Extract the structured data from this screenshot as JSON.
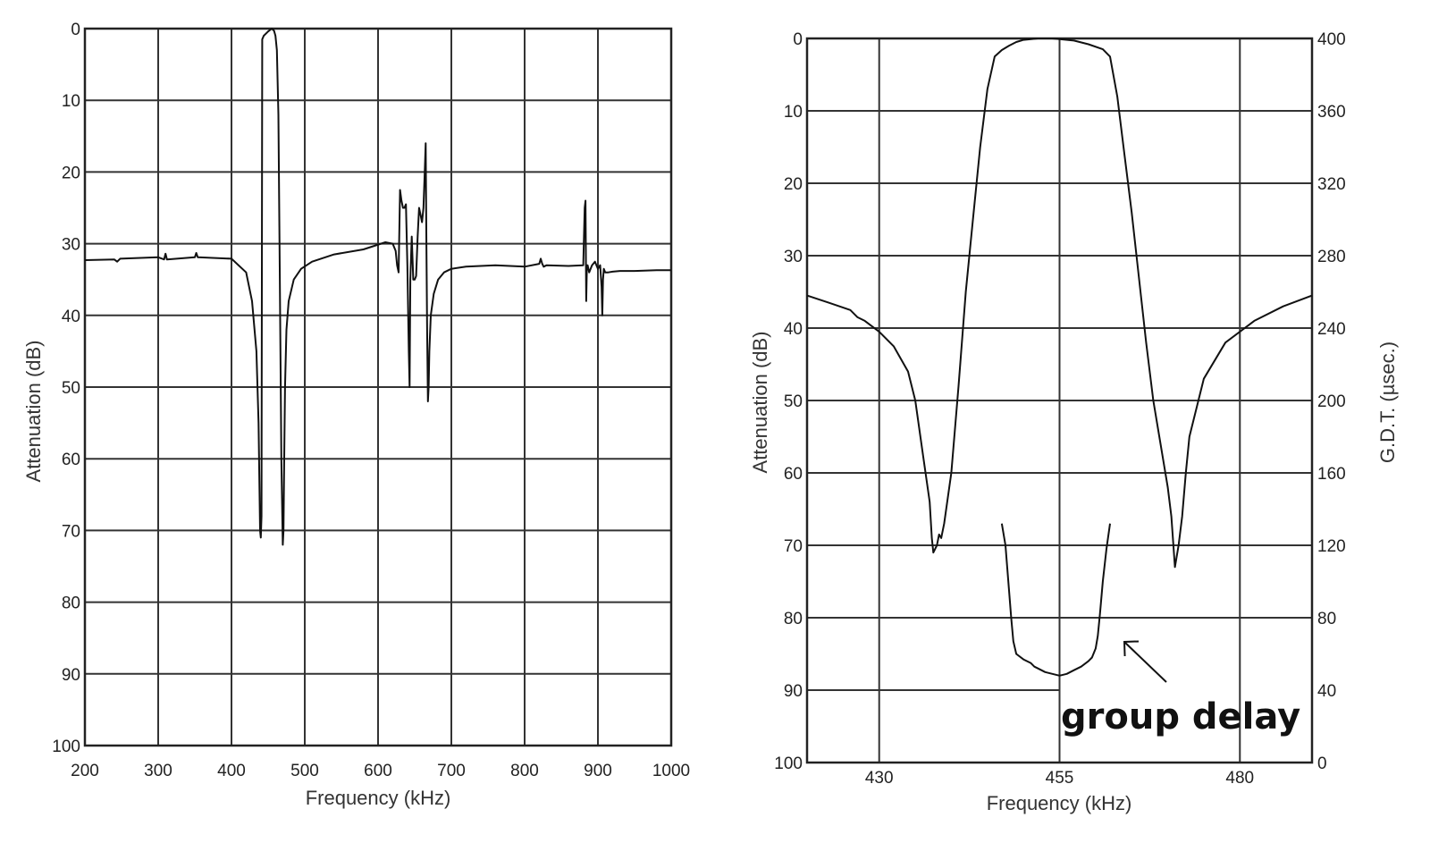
{
  "chart_data": [
    {
      "type": "line",
      "title": "",
      "xlabel": "Frequency (kHz)",
      "ylabel": "Attenuation (dB)",
      "xlim": [
        200,
        1000
      ],
      "ylim": [
        0,
        100
      ],
      "y_inverted": true,
      "grid": true,
      "xticks": [
        "200",
        "300",
        "400",
        "500",
        "600",
        "700",
        "800",
        "900",
        "1000"
      ],
      "yticks": [
        "0",
        "10",
        "20",
        "30",
        "40",
        "50",
        "60",
        "70",
        "80",
        "90",
        "100"
      ],
      "series": [
        {
          "name": "Attenuation",
          "x": [
            200,
            240,
            244,
            248,
            300,
            308,
            310,
            312,
            350,
            352,
            354,
            400,
            420,
            428,
            434,
            437,
            438,
            439,
            440,
            441,
            442,
            444,
            446,
            450,
            455,
            458,
            460,
            462,
            464,
            466,
            468,
            470,
            471,
            472,
            473,
            475,
            478,
            485,
            495,
            510,
            540,
            580,
            610,
            620,
            624,
            626,
            628,
            630,
            632,
            634,
            636,
            638,
            640,
            642,
            643,
            644,
            646,
            648,
            650,
            652,
            654,
            656,
            658,
            660,
            662,
            664,
            665,
            666,
            667,
            668,
            669,
            670,
            672,
            676,
            682,
            690,
            700,
            720,
            760,
            800,
            820,
            822,
            824,
            826,
            830,
            860,
            880,
            882,
            883,
            884,
            885,
            886,
            888,
            892,
            896,
            900,
            903,
            905,
            906,
            907,
            908,
            910,
            914,
            920,
            930,
            950,
            980,
            1000
          ],
          "values": [
            32.3,
            32.2,
            32.5,
            32.1,
            31.9,
            32.2,
            31.4,
            32.2,
            31.9,
            31.3,
            31.9,
            32.1,
            34,
            38,
            45,
            55,
            63,
            70,
            71,
            68,
            1.5,
            1,
            0.8,
            0.4,
            0,
            0.3,
            1,
            3,
            12,
            35,
            60,
            72,
            70,
            60,
            50,
            42,
            38,
            35,
            33.5,
            32.5,
            31.5,
            30.8,
            29.8,
            30,
            31,
            33,
            34,
            22.5,
            24,
            25,
            25,
            24.5,
            33,
            45,
            50,
            35,
            29,
            35,
            35,
            34.5,
            29,
            25,
            26,
            27,
            25,
            19,
            16,
            30,
            42,
            52,
            50,
            45,
            40,
            37,
            35,
            34,
            33.5,
            33.2,
            33,
            33.2,
            32.8,
            32.1,
            32.8,
            33.2,
            33,
            33.1,
            33,
            25,
            24,
            38,
            33,
            33,
            34,
            33,
            32.5,
            33.5,
            33,
            36,
            40,
            35,
            33.5,
            34,
            34,
            33.9,
            33.8,
            33.8,
            33.7,
            33.7
          ]
        }
      ]
    },
    {
      "type": "line",
      "title": "",
      "xlabel": "Frequency (kHz)",
      "ylabel": "Attenuation (dB)",
      "y2label": "G.D.T. (µsec.)",
      "xlim": [
        420,
        490
      ],
      "ylim": [
        0,
        100
      ],
      "y2lim": [
        0,
        400
      ],
      "y_inverted": true,
      "grid": true,
      "xticks": [
        "430",
        "455",
        "480"
      ],
      "yticks": [
        "0",
        "10",
        "20",
        "30",
        "40",
        "50",
        "60",
        "70",
        "80",
        "90",
        "100"
      ],
      "y2ticks": [
        "400",
        "360",
        "320",
        "280",
        "240",
        "200",
        "160",
        "120",
        "80",
        "40",
        "0"
      ],
      "annotation": "group delay",
      "series": [
        {
          "name": "Attenuation",
          "axis": "left",
          "x": [
            420,
            423,
            426,
            427,
            428,
            430,
            432,
            434,
            435,
            436,
            437,
            437.3,
            437.5,
            438,
            438.3,
            438.6,
            439,
            440,
            441,
            442,
            443,
            444,
            445,
            446,
            447,
            448,
            449,
            450,
            452,
            454,
            455,
            457,
            459,
            461,
            462,
            463,
            464,
            465,
            466,
            467,
            468,
            469,
            470,
            470.5,
            471,
            471.5,
            472,
            472.5,
            473,
            475,
            478,
            482,
            486,
            490
          ],
          "values": [
            35.5,
            36.5,
            37.5,
            38.5,
            39,
            40.5,
            42.5,
            46,
            50,
            57,
            64,
            69,
            71,
            70,
            68.5,
            69,
            67,
            60,
            48,
            35,
            25,
            15,
            7,
            2.5,
            1.6,
            1,
            0.5,
            0.2,
            0,
            0,
            0.1,
            0.3,
            0.8,
            1.5,
            2.5,
            8,
            16,
            24,
            33,
            42,
            50,
            56,
            62,
            66,
            73,
            70,
            66,
            60,
            55,
            47,
            42,
            39,
            37,
            35.5
          ]
        },
        {
          "name": "group delay",
          "axis": "right",
          "x": [
            447,
            447.5,
            448,
            448.3,
            448.6,
            449,
            450,
            451,
            451.5,
            452,
            453,
            454,
            455,
            456,
            457,
            458,
            459,
            459.5,
            460,
            460.3,
            460.6,
            461,
            461.5,
            462
          ],
          "values": [
            132,
            120,
            95,
            80,
            67,
            60,
            57,
            55,
            53,
            52,
            50,
            49,
            48,
            49,
            51,
            53,
            56,
            58,
            63,
            70,
            82,
            100,
            118,
            132
          ]
        }
      ]
    }
  ]
}
